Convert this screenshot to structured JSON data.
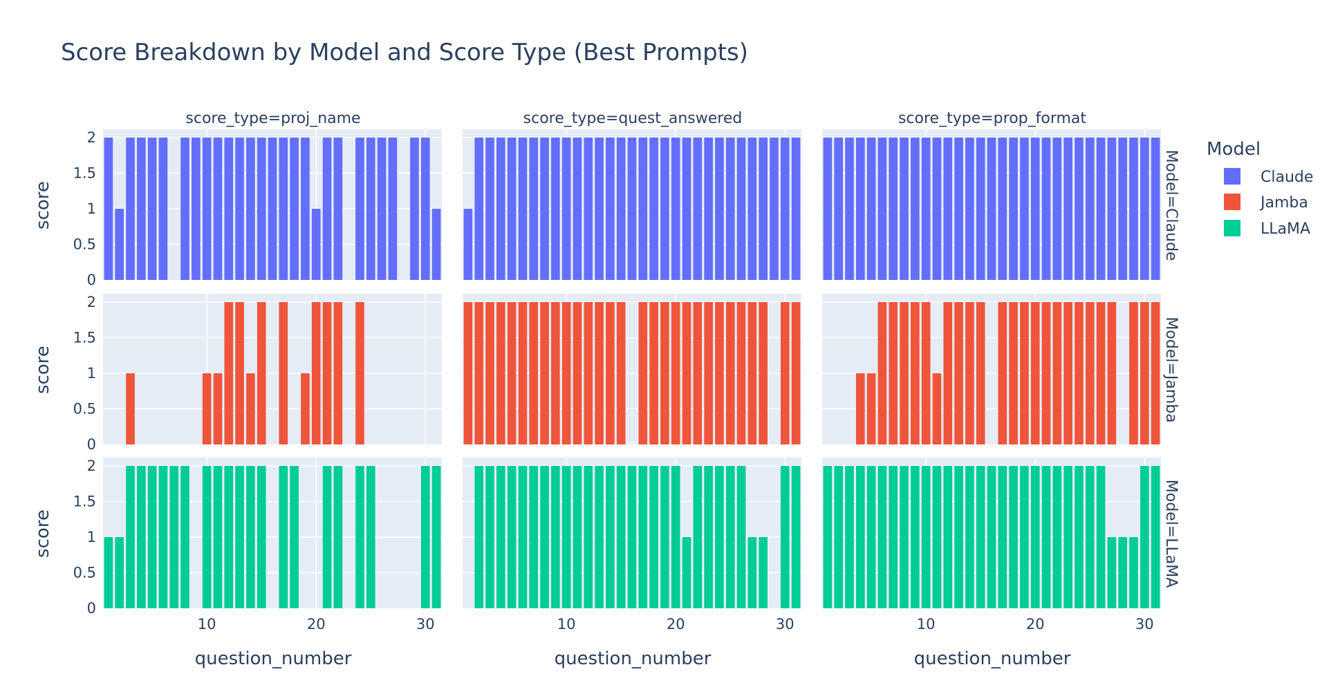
{
  "chart_data": {
    "type": "bar",
    "title": "Score Breakdown by Model and Score Type (Best Prompts)",
    "xlabel": "question_number",
    "ylabel": "score",
    "facet_cols": [
      "score_type=proj_name",
      "score_type=quest_answered",
      "score_type=prop_format"
    ],
    "facet_rows": [
      "Model=Claude",
      "Model=Jamba",
      "Model=LLaMA"
    ],
    "xlim": [
      0.5,
      31.5
    ],
    "ylim": [
      0,
      2
    ],
    "x_ticks": [
      "10",
      "20",
      "30"
    ],
    "y_ticks": [
      "0",
      "0.5",
      "1",
      "1.5",
      "2"
    ],
    "grid": true,
    "legend": {
      "title": "Model",
      "placement": "right",
      "items": [
        {
          "name": "Claude",
          "color": "#636efa"
        },
        {
          "name": "Jamba",
          "color": "#ef553b"
        },
        {
          "name": "LLaMA",
          "color": "#00cc96"
        }
      ]
    },
    "panels": [
      {
        "row": "Model=Claude",
        "col": "score_type=proj_name",
        "color": "#636efa",
        "values": [
          2,
          1,
          2,
          2,
          2,
          2,
          0,
          2,
          2,
          2,
          2,
          2,
          2,
          2,
          2,
          2,
          2,
          2,
          2,
          1,
          2,
          2,
          0,
          2,
          2,
          2,
          2,
          0,
          2,
          2,
          1
        ]
      },
      {
        "row": "Model=Claude",
        "col": "score_type=quest_answered",
        "color": "#636efa",
        "values": [
          1,
          2,
          2,
          2,
          2,
          2,
          2,
          2,
          2,
          2,
          2,
          2,
          2,
          2,
          2,
          2,
          2,
          2,
          2,
          2,
          2,
          2,
          2,
          2,
          2,
          2,
          2,
          2,
          2,
          2,
          2
        ]
      },
      {
        "row": "Model=Claude",
        "col": "score_type=prop_format",
        "color": "#636efa",
        "values": [
          2,
          2,
          2,
          2,
          2,
          2,
          2,
          2,
          2,
          2,
          2,
          2,
          2,
          2,
          2,
          2,
          2,
          2,
          2,
          2,
          2,
          2,
          2,
          2,
          2,
          2,
          2,
          2,
          2,
          2,
          2
        ]
      },
      {
        "row": "Model=Jamba",
        "col": "score_type=proj_name",
        "color": "#ef553b",
        "values": [
          0,
          0,
          1,
          0,
          0,
          0,
          0,
          0,
          0,
          1,
          1,
          2,
          2,
          1,
          2,
          0,
          2,
          0,
          1,
          2,
          2,
          2,
          0,
          2,
          0,
          0,
          0,
          0,
          0,
          0,
          0
        ]
      },
      {
        "row": "Model=Jamba",
        "col": "score_type=quest_answered",
        "color": "#ef553b",
        "values": [
          2,
          2,
          2,
          2,
          2,
          2,
          2,
          2,
          2,
          2,
          2,
          2,
          2,
          2,
          2,
          0,
          2,
          2,
          2,
          2,
          2,
          2,
          2,
          2,
          2,
          2,
          2,
          2,
          0,
          2,
          2
        ]
      },
      {
        "row": "Model=Jamba",
        "col": "score_type=prop_format",
        "color": "#ef553b",
        "values": [
          0,
          0,
          0,
          1,
          1,
          2,
          2,
          2,
          2,
          2,
          1,
          2,
          2,
          2,
          2,
          0,
          2,
          2,
          2,
          2,
          2,
          2,
          2,
          2,
          2,
          2,
          2,
          0,
          2,
          2,
          2
        ]
      },
      {
        "row": "Model=LLaMA",
        "col": "score_type=proj_name",
        "color": "#00cc96",
        "values": [
          1,
          1,
          2,
          2,
          2,
          2,
          2,
          2,
          0,
          2,
          2,
          2,
          2,
          2,
          2,
          0,
          2,
          2,
          0,
          0,
          2,
          2,
          0,
          2,
          2,
          0,
          0,
          0,
          0,
          2,
          2
        ]
      },
      {
        "row": "Model=LLaMA",
        "col": "score_type=quest_answered",
        "color": "#00cc96",
        "values": [
          0,
          2,
          2,
          2,
          2,
          2,
          2,
          2,
          2,
          2,
          2,
          2,
          2,
          2,
          2,
          2,
          2,
          2,
          2,
          2,
          1,
          2,
          2,
          2,
          2,
          2,
          1,
          1,
          0,
          2,
          2
        ]
      },
      {
        "row": "Model=LLaMA",
        "col": "score_type=prop_format",
        "color": "#00cc96",
        "values": [
          2,
          2,
          2,
          2,
          2,
          2,
          2,
          2,
          2,
          2,
          2,
          2,
          2,
          2,
          2,
          2,
          2,
          2,
          2,
          2,
          2,
          2,
          2,
          2,
          2,
          2,
          1,
          1,
          1,
          2,
          2
        ]
      }
    ]
  }
}
